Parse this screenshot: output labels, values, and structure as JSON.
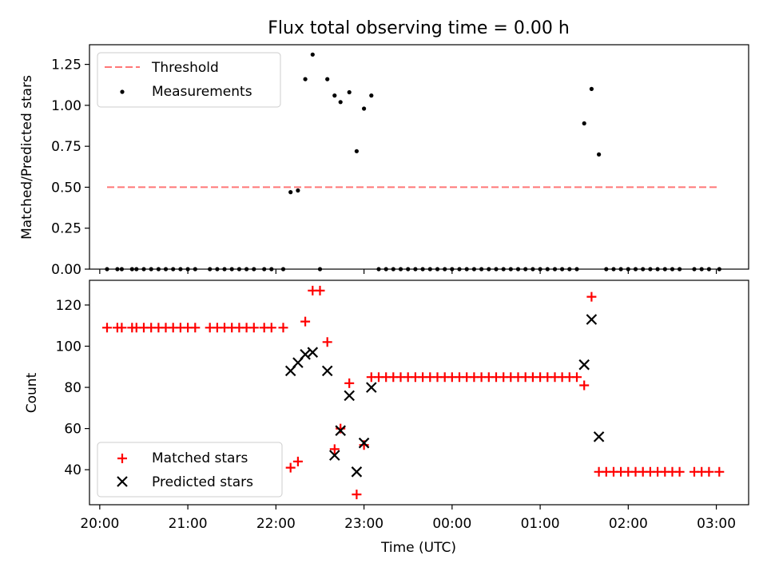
{
  "figure": {
    "title": "Flux total observing time = 0.00 h"
  },
  "chart_data": [
    {
      "type": "scatter",
      "title": "Flux total observing time = 0.00 h",
      "xlabel": "",
      "ylabel": "Matched/Predicted stars",
      "xlim": [
        "19:53",
        "03:22"
      ],
      "ylim": [
        0,
        1.37
      ],
      "yticks": [
        "0.00",
        "0.25",
        "0.50",
        "0.75",
        "1.00",
        "1.25"
      ],
      "xtick_labels_visible": false,
      "legend": {
        "placement": "top-left",
        "entries": [
          "Threshold",
          "Measurements"
        ]
      },
      "series": [
        {
          "name": "Threshold",
          "kind": "dashed-line",
          "color": "#ff7777",
          "points": [
            [
              "20:05",
              0.5
            ],
            [
              "03:01",
              0.5
            ]
          ]
        },
        {
          "name": "Measurements",
          "kind": "dot",
          "color": "#000000",
          "points": [
            [
              "20:05",
              0.0
            ],
            [
              "20:12",
              0.0
            ],
            [
              "20:15",
              0.0
            ],
            [
              "20:22",
              0.0
            ],
            [
              "20:25",
              0.0
            ],
            [
              "20:30",
              0.0
            ],
            [
              "20:35",
              0.0
            ],
            [
              "20:40",
              0.0
            ],
            [
              "20:45",
              0.0
            ],
            [
              "20:50",
              0.0
            ],
            [
              "20:55",
              0.0
            ],
            [
              "21:00",
              0.0
            ],
            [
              "21:05",
              0.0
            ],
            [
              "21:15",
              0.0
            ],
            [
              "21:20",
              0.0
            ],
            [
              "21:25",
              0.0
            ],
            [
              "21:30",
              0.0
            ],
            [
              "21:35",
              0.0
            ],
            [
              "21:40",
              0.0
            ],
            [
              "21:45",
              0.0
            ],
            [
              "21:52",
              0.0
            ],
            [
              "21:57",
              0.0
            ],
            [
              "22:05",
              0.0
            ],
            [
              "22:10",
              0.47
            ],
            [
              "22:15",
              0.48
            ],
            [
              "22:20",
              1.16
            ],
            [
              "22:25",
              1.31
            ],
            [
              "22:30",
              0.0
            ],
            [
              "22:35",
              1.16
            ],
            [
              "22:40",
              1.06
            ],
            [
              "22:44",
              1.02
            ],
            [
              "22:50",
              1.08
            ],
            [
              "22:55",
              0.72
            ],
            [
              "23:00",
              0.98
            ],
            [
              "23:05",
              1.06
            ],
            [
              "23:10",
              0.0
            ],
            [
              "23:15",
              0.0
            ],
            [
              "23:20",
              0.0
            ],
            [
              "23:25",
              0.0
            ],
            [
              "23:30",
              0.0
            ],
            [
              "23:35",
              0.0
            ],
            [
              "23:40",
              0.0
            ],
            [
              "23:45",
              0.0
            ],
            [
              "23:50",
              0.0
            ],
            [
              "23:55",
              0.0
            ],
            [
              "00:00",
              0.0
            ],
            [
              "00:05",
              0.0
            ],
            [
              "00:10",
              0.0
            ],
            [
              "00:15",
              0.0
            ],
            [
              "00:20",
              0.0
            ],
            [
              "00:25",
              0.0
            ],
            [
              "00:30",
              0.0
            ],
            [
              "00:35",
              0.0
            ],
            [
              "00:40",
              0.0
            ],
            [
              "00:45",
              0.0
            ],
            [
              "00:50",
              0.0
            ],
            [
              "00:55",
              0.0
            ],
            [
              "01:00",
              0.0
            ],
            [
              "01:05",
              0.0
            ],
            [
              "01:10",
              0.0
            ],
            [
              "01:15",
              0.0
            ],
            [
              "01:20",
              0.0
            ],
            [
              "01:25",
              0.0
            ],
            [
              "01:30",
              0.89
            ],
            [
              "01:35",
              1.1
            ],
            [
              "01:40",
              0.7
            ],
            [
              "01:45",
              0.0
            ],
            [
              "01:50",
              0.0
            ],
            [
              "01:55",
              0.0
            ],
            [
              "02:00",
              0.0
            ],
            [
              "02:05",
              0.0
            ],
            [
              "02:10",
              0.0
            ],
            [
              "02:15",
              0.0
            ],
            [
              "02:20",
              0.0
            ],
            [
              "02:25",
              0.0
            ],
            [
              "02:30",
              0.0
            ],
            [
              "02:35",
              0.0
            ],
            [
              "02:45",
              0.0
            ],
            [
              "02:50",
              0.0
            ],
            [
              "02:55",
              0.0
            ],
            [
              "03:02",
              0.0
            ]
          ]
        }
      ]
    },
    {
      "type": "scatter",
      "title": "",
      "xlabel": "Time (UTC)",
      "ylabel": "Count",
      "xlim": [
        "19:53",
        "03:22"
      ],
      "ylim": [
        23,
        132
      ],
      "yticks": [
        "40",
        "60",
        "80",
        "100",
        "120"
      ],
      "xticks": [
        "20:00",
        "21:00",
        "22:00",
        "23:00",
        "00:00",
        "01:00",
        "02:00",
        "03:00"
      ],
      "legend": {
        "placement": "bottom-left",
        "entries": [
          "Matched stars",
          "Predicted stars"
        ]
      },
      "series": [
        {
          "name": "Matched stars",
          "kind": "plus",
          "color": "#ff0000",
          "points": [
            [
              "20:05",
              109
            ],
            [
              "20:12",
              109
            ],
            [
              "20:15",
              109
            ],
            [
              "20:22",
              109
            ],
            [
              "20:25",
              109
            ],
            [
              "20:30",
              109
            ],
            [
              "20:35",
              109
            ],
            [
              "20:40",
              109
            ],
            [
              "20:45",
              109
            ],
            [
              "20:50",
              109
            ],
            [
              "20:55",
              109
            ],
            [
              "21:00",
              109
            ],
            [
              "21:05",
              109
            ],
            [
              "21:15",
              109
            ],
            [
              "21:20",
              109
            ],
            [
              "21:25",
              109
            ],
            [
              "21:30",
              109
            ],
            [
              "21:35",
              109
            ],
            [
              "21:40",
              109
            ],
            [
              "21:45",
              109
            ],
            [
              "21:52",
              109
            ],
            [
              "21:57",
              109
            ],
            [
              "22:05",
              109
            ],
            [
              "22:10",
              41
            ],
            [
              "22:15",
              44
            ],
            [
              "22:20",
              112
            ],
            [
              "22:25",
              127
            ],
            [
              "22:30",
              127
            ],
            [
              "22:35",
              102
            ],
            [
              "22:40",
              50
            ],
            [
              "22:44",
              60
            ],
            [
              "22:50",
              82
            ],
            [
              "22:55",
              28
            ],
            [
              "23:00",
              52
            ],
            [
              "23:05",
              85
            ],
            [
              "23:10",
              85
            ],
            [
              "23:15",
              85
            ],
            [
              "23:20",
              85
            ],
            [
              "23:25",
              85
            ],
            [
              "23:30",
              85
            ],
            [
              "23:35",
              85
            ],
            [
              "23:40",
              85
            ],
            [
              "23:45",
              85
            ],
            [
              "23:50",
              85
            ],
            [
              "23:55",
              85
            ],
            [
              "00:00",
              85
            ],
            [
              "00:05",
              85
            ],
            [
              "00:10",
              85
            ],
            [
              "00:15",
              85
            ],
            [
              "00:20",
              85
            ],
            [
              "00:25",
              85
            ],
            [
              "00:30",
              85
            ],
            [
              "00:35",
              85
            ],
            [
              "00:40",
              85
            ],
            [
              "00:45",
              85
            ],
            [
              "00:50",
              85
            ],
            [
              "00:55",
              85
            ],
            [
              "01:00",
              85
            ],
            [
              "01:05",
              85
            ],
            [
              "01:10",
              85
            ],
            [
              "01:15",
              85
            ],
            [
              "01:20",
              85
            ],
            [
              "01:25",
              85
            ],
            [
              "01:30",
              81
            ],
            [
              "01:35",
              124
            ],
            [
              "01:40",
              39
            ],
            [
              "01:45",
              39
            ],
            [
              "01:50",
              39
            ],
            [
              "01:55",
              39
            ],
            [
              "02:00",
              39
            ],
            [
              "02:05",
              39
            ],
            [
              "02:10",
              39
            ],
            [
              "02:15",
              39
            ],
            [
              "02:20",
              39
            ],
            [
              "02:25",
              39
            ],
            [
              "02:30",
              39
            ],
            [
              "02:35",
              39
            ],
            [
              "02:45",
              39
            ],
            [
              "02:50",
              39
            ],
            [
              "02:55",
              39
            ],
            [
              "03:02",
              39
            ]
          ]
        },
        {
          "name": "Predicted stars",
          "kind": "x",
          "color": "#000000",
          "points": [
            [
              "22:10",
              88
            ],
            [
              "22:15",
              92
            ],
            [
              "22:20",
              96
            ],
            [
              "22:25",
              97
            ],
            [
              "22:35",
              88
            ],
            [
              "22:40",
              47
            ],
            [
              "22:44",
              59
            ],
            [
              "22:50",
              76
            ],
            [
              "22:55",
              39
            ],
            [
              "23:00",
              53
            ],
            [
              "23:05",
              80
            ],
            [
              "01:30",
              91
            ],
            [
              "01:35",
              113
            ],
            [
              "01:40",
              56
            ]
          ]
        }
      ]
    }
  ]
}
